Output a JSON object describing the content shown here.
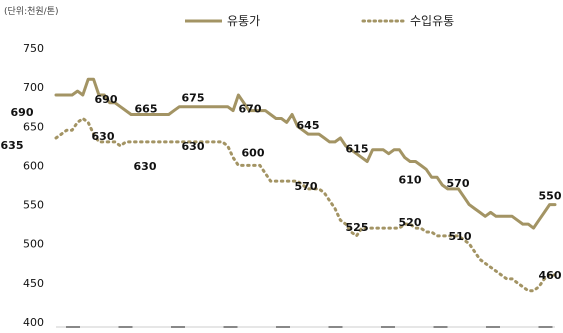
{
  "chart_data": {
    "type": "line",
    "unit_label": "(단위:천원/톤)",
    "ylim": [
      400,
      750
    ],
    "yticks": [
      400,
      450,
      500,
      550,
      600,
      650,
      700,
      750
    ],
    "grid": false,
    "legend_position": "top",
    "series": [
      {
        "name": "유통가",
        "color": "#a39464",
        "style": "solid",
        "values": [
          690,
          690,
          690,
          690,
          695,
          690,
          710,
          710,
          690,
          690,
          680,
          680,
          675,
          670,
          665,
          665,
          665,
          665,
          665,
          665,
          665,
          665,
          670,
          675,
          675,
          675,
          675,
          675,
          675,
          675,
          675,
          675,
          675,
          670,
          690,
          680,
          670,
          670,
          670,
          670,
          665,
          660,
          660,
          655,
          665,
          650,
          645,
          640,
          640,
          640,
          635,
          630,
          630,
          635,
          625,
          620,
          615,
          610,
          605,
          620,
          620,
          620,
          615,
          620,
          620,
          610,
          605,
          605,
          600,
          595,
          585,
          585,
          575,
          570,
          570,
          570,
          560,
          550,
          545,
          540,
          535,
          540,
          535,
          535,
          535,
          535,
          530,
          525,
          525,
          520,
          530,
          540,
          550,
          550
        ]
      },
      {
        "name": "수입유통",
        "color": "#a39464",
        "style": "dotted",
        "values": [
          635,
          640,
          645,
          645,
          655,
          660,
          655,
          640,
          630,
          630,
          630,
          630,
          625,
          630,
          630,
          630,
          630,
          630,
          630,
          630,
          630,
          630,
          630,
          630,
          630,
          630,
          630,
          630,
          630,
          630,
          630,
          630,
          625,
          610,
          600,
          600,
          600,
          600,
          600,
          590,
          580,
          580,
          580,
          580,
          580,
          580,
          575,
          570,
          570,
          570,
          565,
          555,
          545,
          530,
          525,
          515,
          510,
          520,
          520,
          520,
          520,
          520,
          520,
          520,
          520,
          525,
          525,
          520,
          520,
          515,
          515,
          510,
          510,
          510,
          510,
          510,
          505,
          500,
          490,
          480,
          475,
          470,
          465,
          460,
          455,
          455,
          450,
          445,
          440,
          440,
          445,
          455,
          460,
          460
        ]
      }
    ],
    "data_labels": [
      {
        "series": 0,
        "value": 690,
        "text": "690"
      },
      {
        "series": 0,
        "value": 690,
        "text": "690"
      },
      {
        "series": 0,
        "value": 665,
        "text": "665"
      },
      {
        "series": 0,
        "value": 675,
        "text": "675"
      },
      {
        "series": 0,
        "value": 670,
        "text": "670"
      },
      {
        "series": 0,
        "value": 645,
        "text": "645"
      },
      {
        "series": 0,
        "value": 615,
        "text": "615"
      },
      {
        "series": 0,
        "value": 610,
        "text": "610"
      },
      {
        "series": 0,
        "value": 570,
        "text": "570"
      },
      {
        "series": 0,
        "value": 550,
        "text": "550"
      },
      {
        "series": 1,
        "value": 635,
        "text": "635"
      },
      {
        "series": 1,
        "value": 630,
        "text": "630"
      },
      {
        "series": 1,
        "value": 630,
        "text": "630"
      },
      {
        "series": 1,
        "value": 630,
        "text": "630"
      },
      {
        "series": 1,
        "value": 600,
        "text": "600"
      },
      {
        "series": 1,
        "value": 570,
        "text": "570"
      },
      {
        "series": 1,
        "value": 525,
        "text": "525"
      },
      {
        "series": 1,
        "value": 520,
        "text": "520"
      },
      {
        "series": 1,
        "value": 510,
        "text": "510"
      },
      {
        "series": 1,
        "value": 460,
        "text": "460"
      }
    ]
  }
}
